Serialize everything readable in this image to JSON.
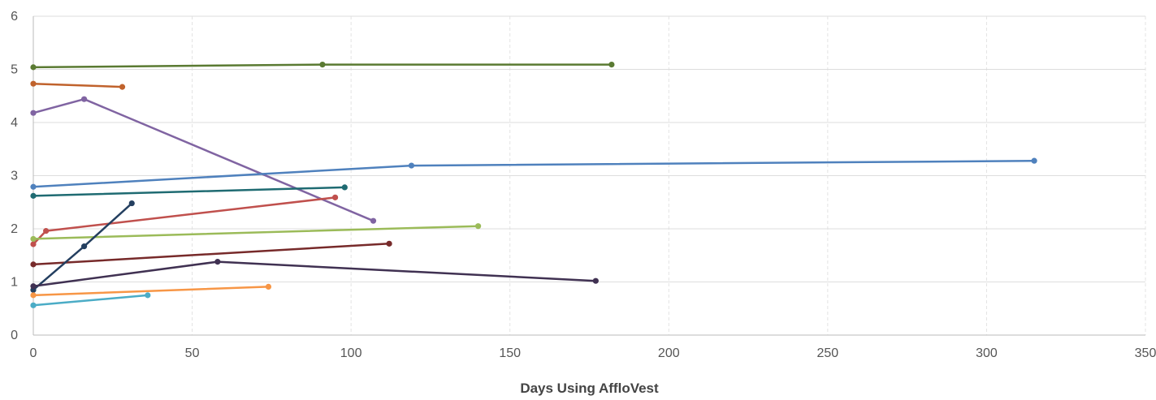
{
  "chart_data": {
    "type": "line",
    "title": "",
    "xlabel": "Days Using AffloVest",
    "ylabel": "",
    "xlim": [
      0,
      350
    ],
    "ylim": [
      0,
      6
    ],
    "xticks": [
      0,
      50,
      100,
      150,
      200,
      250,
      300,
      350
    ],
    "yticks": [
      0,
      1,
      2,
      3,
      4,
      5,
      6
    ],
    "grid": {
      "x": "dashed",
      "y": "solid"
    },
    "legend": "none",
    "series": [
      {
        "color": "#5a7a32",
        "points": [
          [
            0,
            5.04
          ],
          [
            91,
            5.09
          ],
          [
            182,
            5.09
          ]
        ]
      },
      {
        "color": "#c0622c",
        "points": [
          [
            0,
            4.73
          ],
          [
            28,
            4.67
          ]
        ]
      },
      {
        "color": "#8064a2",
        "points": [
          [
            0,
            4.18
          ],
          [
            16,
            4.44
          ],
          [
            107,
            2.15
          ]
        ]
      },
      {
        "color": "#4f81bd",
        "points": [
          [
            0,
            2.79
          ],
          [
            119,
            3.19
          ],
          [
            315,
            3.28
          ]
        ]
      },
      {
        "color": "#1f6b72",
        "points": [
          [
            0,
            2.62
          ],
          [
            98,
            2.78
          ]
        ]
      },
      {
        "color": "#c0504d",
        "points": [
          [
            0,
            1.71
          ],
          [
            4,
            1.96
          ],
          [
            95,
            2.59
          ]
        ]
      },
      {
        "color": "#9bbb59",
        "points": [
          [
            0,
            1.81
          ],
          [
            140,
            2.05
          ]
        ]
      },
      {
        "color": "#772a2a",
        "points": [
          [
            0,
            1.33
          ],
          [
            112,
            1.72
          ]
        ]
      },
      {
        "color": "#243f60",
        "points": [
          [
            0,
            0.85
          ],
          [
            16,
            1.67
          ],
          [
            31,
            2.48
          ]
        ]
      },
      {
        "color": "#403152",
        "points": [
          [
            0,
            0.92
          ],
          [
            58,
            1.38
          ],
          [
            177,
            1.02
          ]
        ]
      },
      {
        "color": "#f79646",
        "points": [
          [
            0,
            0.75
          ],
          [
            74,
            0.91
          ]
        ]
      },
      {
        "color": "#4bacc6",
        "points": [
          [
            0,
            0.56
          ],
          [
            36,
            0.75
          ]
        ]
      }
    ]
  }
}
